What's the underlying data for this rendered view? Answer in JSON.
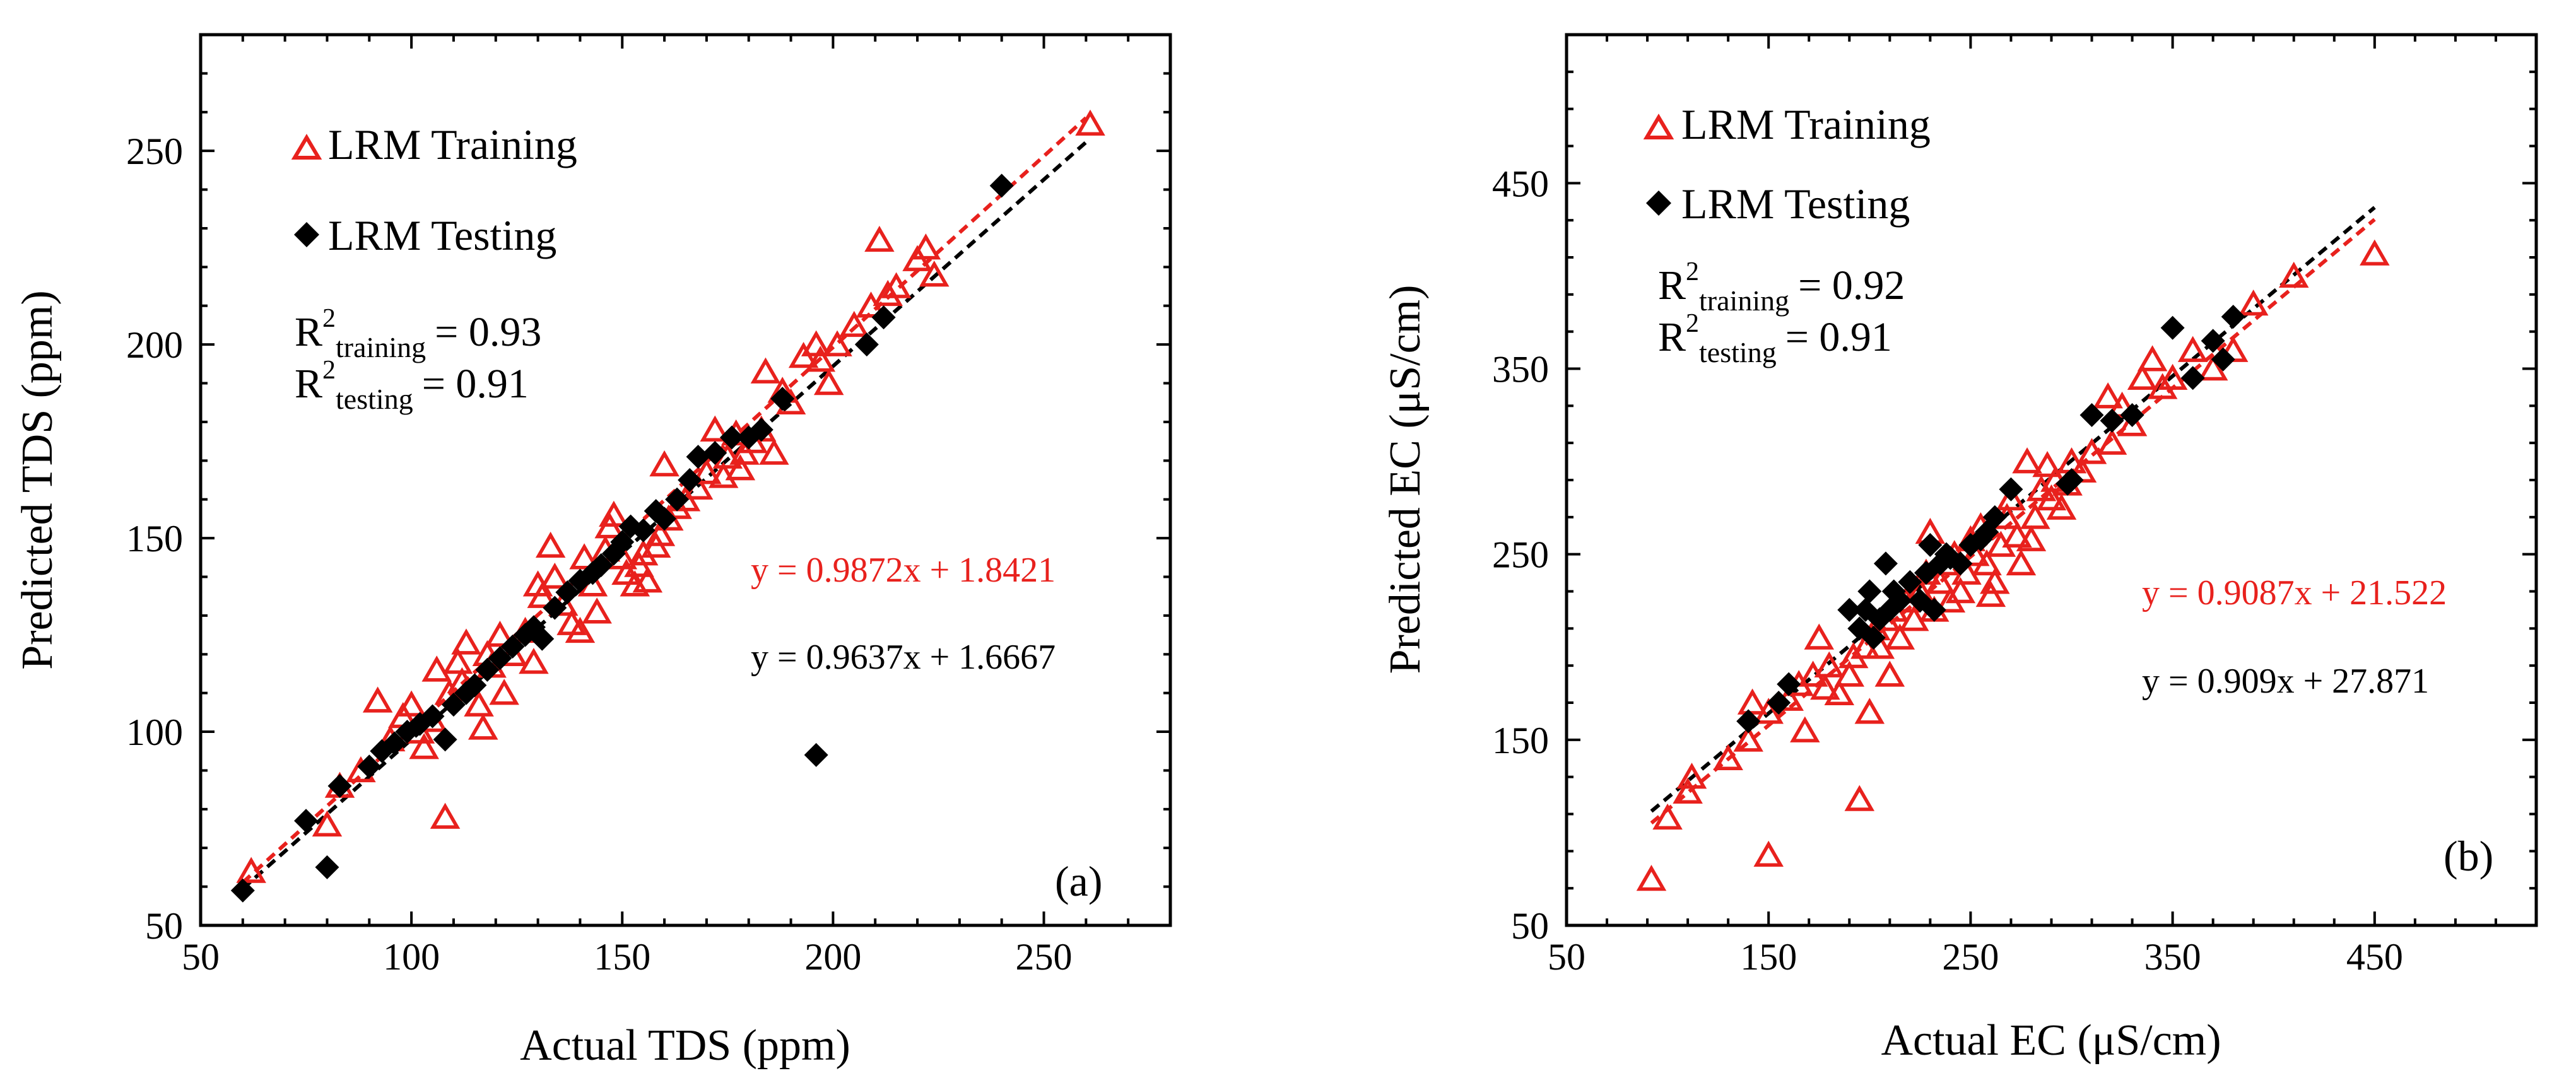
{
  "colors": {
    "training": "#e8211d",
    "testing": "#000000",
    "axis": "#000000"
  },
  "chart_data": [
    {
      "type": "scatter",
      "panel_label": "(a)",
      "xlabel": "Actual TDS (ppm)",
      "ylabel": "Predicted TDS (ppm)",
      "xlim": [
        50,
        280
      ],
      "ylim": [
        50,
        280
      ],
      "xticks": [
        50,
        100,
        150,
        200,
        250
      ],
      "yticks": [
        50,
        100,
        150,
        200,
        250
      ],
      "legend": {
        "training": "LRM Training",
        "testing": "LRM Testing",
        "placement": "top-left"
      },
      "r2": {
        "prefix": "R",
        "sup": "2",
        "training_sub": "training",
        "testing_sub": "testing",
        "training_val": "= 0.93",
        "testing_val": "= 0.91"
      },
      "equations": {
        "training": "y = 0.9872x + 1.8421",
        "testing": "y = 0.9637x + 1.6667"
      },
      "trend_training": {
        "slope": 0.9872,
        "intercept": 1.8421,
        "x": [
          60,
          260
        ]
      },
      "trend_testing": {
        "slope": 0.9637,
        "intercept": 1.6667,
        "x": [
          60,
          260
        ]
      },
      "series": [
        {
          "name": "LRM Training",
          "marker": "open-triangle",
          "points": [
            [
              62,
              64
            ],
            [
              80,
              76
            ],
            [
              83,
              86
            ],
            [
              88,
              90
            ],
            [
              92,
              108
            ],
            [
              95,
              98
            ],
            [
              98,
              104
            ],
            [
              100,
              107
            ],
            [
              102,
              100
            ],
            [
              103,
              96
            ],
            [
              105,
              103
            ],
            [
              106,
              116
            ],
            [
              108,
              78
            ],
            [
              109,
              110
            ],
            [
              111,
              118
            ],
            [
              112,
              113
            ],
            [
              113,
              123
            ],
            [
              116,
              107
            ],
            [
              117,
              101
            ],
            [
              118,
              120
            ],
            [
              119,
              117
            ],
            [
              121,
              125
            ],
            [
              122,
              110
            ],
            [
              124,
              120
            ],
            [
              127,
              126
            ],
            [
              129,
              118
            ],
            [
              130,
              138
            ],
            [
              131,
              135
            ],
            [
              133,
              148
            ],
            [
              134,
              140
            ],
            [
              136,
              133
            ],
            [
              138,
              128
            ],
            [
              140,
              126
            ],
            [
              141,
              145
            ],
            [
              143,
              138
            ],
            [
              144,
              131
            ],
            [
              146,
              147
            ],
            [
              147,
              153
            ],
            [
              148,
              156
            ],
            [
              150,
              145
            ],
            [
              151,
              141
            ],
            [
              153,
              138
            ],
            [
              154,
              143
            ],
            [
              155,
              146
            ],
            [
              156,
              139
            ],
            [
              158,
              148
            ],
            [
              159,
              151
            ],
            [
              160,
              169
            ],
            [
              161,
              155
            ],
            [
              163,
              158
            ],
            [
              165,
              160
            ],
            [
              168,
              163
            ],
            [
              170,
              167
            ],
            [
              172,
              178
            ],
            [
              174,
              166
            ],
            [
              175,
              171
            ],
            [
              177,
              177
            ],
            [
              178,
              168
            ],
            [
              179,
              172
            ],
            [
              181,
              175
            ],
            [
              183,
              178
            ],
            [
              184,
              193
            ],
            [
              186,
              172
            ],
            [
              188,
              188
            ],
            [
              190,
              185
            ],
            [
              193,
              197
            ],
            [
              196,
              200
            ],
            [
              197,
              196
            ],
            [
              199,
              190
            ],
            [
              201,
              200
            ],
            [
              205,
              205
            ],
            [
              209,
              210
            ],
            [
              211,
              227
            ],
            [
              213,
              213
            ],
            [
              215,
              215
            ],
            [
              220,
              222
            ],
            [
              222,
              225
            ],
            [
              224,
              218
            ],
            [
              261,
              257
            ]
          ]
        },
        {
          "name": "LRM Testing",
          "marker": "filled-diamond",
          "points": [
            [
              60,
              59
            ],
            [
              75,
              77
            ],
            [
              80,
              65
            ],
            [
              83,
              86
            ],
            [
              90,
              91
            ],
            [
              93,
              95
            ],
            [
              96,
              97
            ],
            [
              99,
              100
            ],
            [
              102,
              102
            ],
            [
              105,
              104
            ],
            [
              108,
              98
            ],
            [
              110,
              107
            ],
            [
              113,
              110
            ],
            [
              115,
              112
            ],
            [
              118,
              116
            ],
            [
              121,
              119
            ],
            [
              124,
              122
            ],
            [
              127,
              125
            ],
            [
              129,
              127
            ],
            [
              131,
              124
            ],
            [
              134,
              132
            ],
            [
              137,
              136
            ],
            [
              140,
              139
            ],
            [
              143,
              141
            ],
            [
              145,
              143
            ],
            [
              148,
              146
            ],
            [
              150,
              149
            ],
            [
              152,
              153
            ],
            [
              155,
              152
            ],
            [
              158,
              157
            ],
            [
              160,
              155
            ],
            [
              163,
              160
            ],
            [
              166,
              165
            ],
            [
              168,
              171
            ],
            [
              172,
              172
            ],
            [
              176,
              176
            ],
            [
              180,
              176
            ],
            [
              183,
              178
            ],
            [
              188,
              186
            ],
            [
              196,
              94
            ],
            [
              208,
              200
            ],
            [
              212,
              207
            ],
            [
              240,
              241
            ]
          ]
        }
      ]
    },
    {
      "type": "scatter",
      "panel_label": "(b)",
      "xlabel": "Actual EC (μS/cm)",
      "ylabel": "Predicted EC (μS/cm)",
      "xlim": [
        50,
        530
      ],
      "ylim": [
        50,
        530
      ],
      "xticks": [
        50,
        150,
        250,
        350,
        450
      ],
      "yticks": [
        50,
        150,
        250,
        350,
        450
      ],
      "legend": {
        "training": "LRM Training",
        "testing": "LRM Testing",
        "placement": "top-left"
      },
      "r2": {
        "prefix": "R",
        "sup": "2",
        "training_sub": "training",
        "testing_sub": "testing",
        "training_val": "= 0.92",
        "testing_val": "= 0.91"
      },
      "equations": {
        "training": "y = 0.9087x + 21.522",
        "testing": "y = 0.909x + 27.871"
      },
      "trend_training": {
        "slope": 0.9087,
        "intercept": 21.522,
        "x": [
          92,
          450
        ]
      },
      "trend_testing": {
        "slope": 0.909,
        "intercept": 27.871,
        "x": [
          92,
          450
        ]
      },
      "series": [
        {
          "name": "LRM Training",
          "marker": "open-triangle",
          "points": [
            [
              92,
              75
            ],
            [
              100,
              108
            ],
            [
              110,
              122
            ],
            [
              112,
              130
            ],
            [
              130,
              140
            ],
            [
              140,
              150
            ],
            [
              142,
              170
            ],
            [
              150,
              88
            ],
            [
              150,
              165
            ],
            [
              160,
              172
            ],
            [
              165,
              180
            ],
            [
              168,
              155
            ],
            [
              172,
              185
            ],
            [
              175,
              205
            ],
            [
              178,
              178
            ],
            [
              180,
              190
            ],
            [
              185,
              175
            ],
            [
              190,
              185
            ],
            [
              192,
              195
            ],
            [
              195,
              118
            ],
            [
              198,
              200
            ],
            [
              200,
              165
            ],
            [
              203,
              210
            ],
            [
              205,
              200
            ],
            [
              208,
              215
            ],
            [
              210,
              185
            ],
            [
              212,
              220
            ],
            [
              215,
              205
            ],
            [
              218,
              225
            ],
            [
              222,
              215
            ],
            [
              225,
              230
            ],
            [
              228,
              240
            ],
            [
              230,
              262
            ],
            [
              232,
              220
            ],
            [
              235,
              235
            ],
            [
              238,
              245
            ],
            [
              240,
              225
            ],
            [
              242,
              250
            ],
            [
              245,
              230
            ],
            [
              248,
              240
            ],
            [
              250,
              258
            ],
            [
              252,
              250
            ],
            [
              255,
              265
            ],
            [
              258,
              245
            ],
            [
              260,
              228
            ],
            [
              262,
              235
            ],
            [
              265,
              255
            ],
            [
              268,
              270
            ],
            [
              270,
              280
            ],
            [
              273,
              260
            ],
            [
              275,
              245
            ],
            [
              278,
              300
            ],
            [
              280,
              258
            ],
            [
              282,
              270
            ],
            [
              285,
              285
            ],
            [
              288,
              298
            ],
            [
              290,
              280
            ],
            [
              292,
              290
            ],
            [
              295,
              275
            ],
            [
              298,
              288
            ],
            [
              300,
              300
            ],
            [
              305,
              295
            ],
            [
              310,
              305
            ],
            [
              318,
              335
            ],
            [
              320,
              310
            ],
            [
              325,
              330
            ],
            [
              330,
              320
            ],
            [
              335,
              345
            ],
            [
              340,
              355
            ],
            [
              345,
              340
            ],
            [
              350,
              345
            ],
            [
              360,
              360
            ],
            [
              370,
              350
            ],
            [
              380,
              360
            ],
            [
              390,
              385
            ],
            [
              410,
              400
            ],
            [
              450,
              412
            ]
          ]
        },
        {
          "name": "LRM Testing",
          "marker": "filled-diamond",
          "points": [
            [
              140,
              160
            ],
            [
              155,
              170
            ],
            [
              160,
              180
            ],
            [
              190,
              220
            ],
            [
              195,
              210
            ],
            [
              198,
              220
            ],
            [
              200,
              230
            ],
            [
              202,
              205
            ],
            [
              205,
              215
            ],
            [
              208,
              245
            ],
            [
              210,
              220
            ],
            [
              212,
              230
            ],
            [
              215,
              225
            ],
            [
              220,
              235
            ],
            [
              225,
              225
            ],
            [
              228,
              240
            ],
            [
              230,
              255
            ],
            [
              232,
              220
            ],
            [
              235,
              245
            ],
            [
              238,
              250
            ],
            [
              240,
              248
            ],
            [
              245,
              245
            ],
            [
              250,
              255
            ],
            [
              255,
              258
            ],
            [
              258,
              262
            ],
            [
              262,
              270
            ],
            [
              270,
              285
            ],
            [
              298,
              288
            ],
            [
              300,
              290
            ],
            [
              310,
              325
            ],
            [
              320,
              322
            ],
            [
              330,
              325
            ],
            [
              350,
              372
            ],
            [
              360,
              345
            ],
            [
              370,
              365
            ],
            [
              375,
              355
            ],
            [
              380,
              378
            ]
          ]
        }
      ]
    }
  ]
}
